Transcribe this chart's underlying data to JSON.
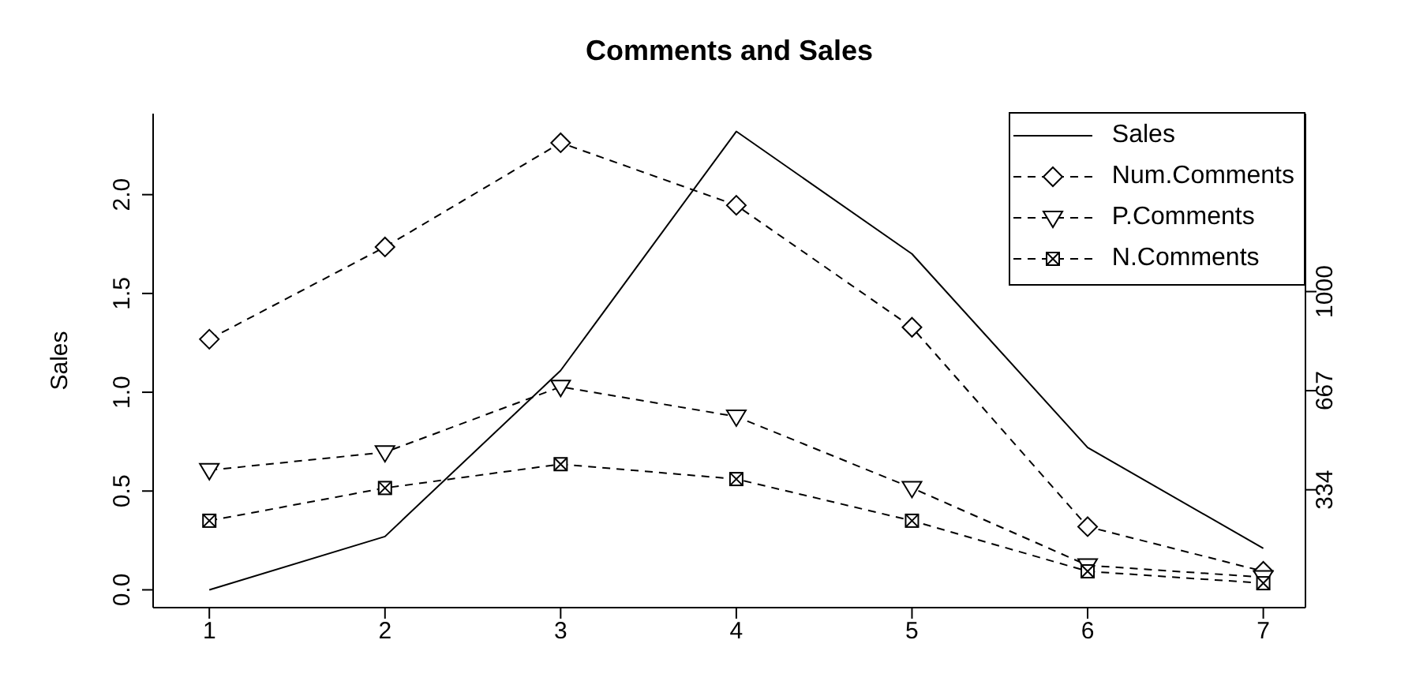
{
  "chart_data": {
    "type": "line",
    "title": "Comments and Sales",
    "ylabel": "Sales",
    "x": [
      1,
      2,
      3,
      4,
      5,
      6,
      7
    ],
    "xlim": [
      0.68,
      7.24
    ],
    "xticks": [
      1,
      2,
      3,
      4,
      5,
      6,
      7
    ],
    "ylim": [
      -0.09,
      2.41
    ],
    "yticks": [
      {
        "value": 0,
        "label": "0.0"
      },
      {
        "value": 0.5,
        "label": "0.5"
      },
      {
        "value": 1,
        "label": "1.0"
      },
      {
        "value": 1.5,
        "label": "1.5"
      },
      {
        "value": 2,
        "label": "2.0"
      }
    ],
    "y2lim": [
      -62,
      1598
    ],
    "y2ticks": [
      334,
      667,
      1000
    ],
    "legend": "top right",
    "series": [
      {
        "name": "Sales",
        "color": "#000000",
        "marker": "none",
        "line_style": "solid",
        "values": [
          0.0,
          0.27,
          1.11,
          2.32,
          1.7,
          0.72,
          0.21
        ]
      },
      {
        "name": "Num.Comments",
        "color": "#000000",
        "marker": "diamond",
        "line_style": "dashed",
        "axis": "y2",
        "values": [
          840,
          1150,
          1500,
          1290,
          880,
          210,
          60
        ]
      },
      {
        "name": "P.Comments",
        "color": "#000000",
        "marker": "triangle",
        "line_style": "dashed",
        "axis": "y2",
        "values": [
          400,
          460,
          680,
          580,
          340,
          80,
          40
        ]
      },
      {
        "name": "N.Comments",
        "color": "#000000",
        "marker": "square",
        "line_style": "dashed",
        "axis": "y2",
        "values": [
          230,
          340,
          420,
          370,
          230,
          60,
          20
        ]
      }
    ]
  }
}
